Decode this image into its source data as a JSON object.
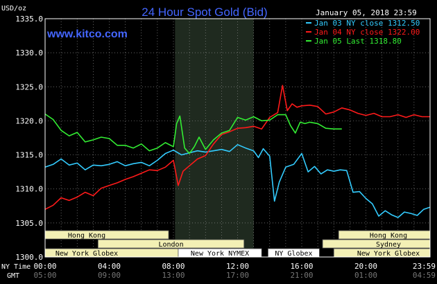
{
  "chart_data": {
    "type": "line",
    "title": "24 Hour Spot Gold (Bid)",
    "watermark": "www.kitco.com",
    "date_stamp": "January 05, 2018 23:59",
    "ylabel": "USD/oz",
    "ylim": [
      1300,
      1335
    ],
    "yticks": [
      "1335.0",
      "1330.0",
      "1325.0",
      "1320.0",
      "1315.0",
      "1310.0",
      "1305.0",
      "1300.0"
    ],
    "xlim": [
      0,
      24
    ],
    "xticks_ny": [
      "00:00",
      "04:00",
      "08:00",
      "12:00",
      "16:00",
      "20:00",
      "23:59"
    ],
    "xticks_gmt": [
      "05:00",
      "09:00",
      "13:00",
      "17:00",
      "21:00",
      "01:00",
      "04:59"
    ],
    "row_labels": [
      "NY Time",
      "GMT"
    ],
    "grid": true,
    "legend_position": "top-right",
    "shaded_session": [
      8.1,
      13.0
    ],
    "series": [
      {
        "name": "Jan 03 NY close 1312.50",
        "color": "#33ccff",
        "x": [
          0,
          0.5,
          1,
          1.5,
          2,
          2.5,
          3,
          3.5,
          4,
          4.5,
          5,
          5.5,
          6,
          6.5,
          7,
          7.5,
          8,
          8.5,
          9,
          9.5,
          10,
          10.5,
          11,
          11.5,
          12,
          12.5,
          13,
          13.3,
          13.6,
          14,
          14.3,
          14.6,
          15,
          15.5,
          16,
          16.4,
          16.8,
          17.2,
          17.6,
          18,
          18.4,
          18.8,
          19.2,
          19.6,
          20,
          20.4,
          20.8,
          21.2,
          21.6,
          22,
          22.4,
          22.8,
          23.2,
          23.6,
          23.98
        ],
        "values": [
          1313.2,
          1313.6,
          1314.4,
          1313.5,
          1313.8,
          1312.8,
          1313.5,
          1313.4,
          1313.6,
          1314.0,
          1313.4,
          1313.7,
          1313.9,
          1313.4,
          1314.2,
          1315.2,
          1315.7,
          1315.0,
          1315.3,
          1315.6,
          1315.4,
          1315.6,
          1315.8,
          1315.5,
          1316.5,
          1316.0,
          1315.6,
          1314.6,
          1315.9,
          1314.8,
          1308.2,
          1311.0,
          1313.2,
          1313.6,
          1315.2,
          1312.5,
          1313.3,
          1312.2,
          1312.8,
          1312.6,
          1312.8,
          1312.7,
          1309.5,
          1309.6,
          1308.6,
          1307.8,
          1306.0,
          1306.8,
          1306.2,
          1305.8,
          1306.6,
          1306.4,
          1306.1,
          1307.0,
          1307.3
        ]
      },
      {
        "name": "Jan 04 NY close 1322.00",
        "color": "#ff1a1a",
        "x": [
          0,
          0.5,
          1,
          1.5,
          2,
          2.5,
          3,
          3.5,
          4,
          4.5,
          5,
          5.5,
          6,
          6.5,
          7,
          7.5,
          8,
          8.3,
          8.6,
          9,
          9.5,
          10,
          10.5,
          11,
          11.5,
          12,
          12.5,
          13,
          13.5,
          14,
          14.5,
          14.8,
          15.1,
          15.4,
          15.7,
          16,
          16.5,
          17,
          17.5,
          18,
          18.5,
          19,
          19.5,
          20,
          20.5,
          21,
          21.5,
          22,
          22.5,
          23,
          23.5,
          23.98
        ],
        "values": [
          1307.0,
          1307.6,
          1308.7,
          1308.3,
          1308.8,
          1309.5,
          1309.0,
          1310.1,
          1310.5,
          1310.9,
          1311.4,
          1311.8,
          1312.3,
          1312.8,
          1312.7,
          1313.2,
          1314.2,
          1310.5,
          1312.6,
          1313.4,
          1314.4,
          1314.9,
          1316.6,
          1318.0,
          1318.4,
          1318.9,
          1319.0,
          1319.2,
          1318.8,
          1320.5,
          1321.2,
          1325.2,
          1321.5,
          1322.5,
          1322.0,
          1322.2,
          1322.3,
          1322.1,
          1321.0,
          1321.3,
          1321.9,
          1321.6,
          1321.1,
          1320.8,
          1321.1,
          1320.6,
          1320.6,
          1320.9,
          1320.5,
          1320.9,
          1320.6,
          1320.6
        ]
      },
      {
        "name": "Jan 05 Last 1318.80",
        "color": "#33ee33",
        "x": [
          0,
          0.5,
          1,
          1.5,
          2,
          2.5,
          3,
          3.5,
          4,
          4.5,
          5,
          5.5,
          6,
          6.5,
          7,
          7.5,
          8,
          8.2,
          8.4,
          8.7,
          9,
          9.3,
          9.6,
          10,
          10.5,
          11,
          11.5,
          12,
          12.5,
          13,
          13.5,
          14,
          14.5,
          15,
          15.3,
          15.6,
          15.9,
          16.2,
          16.5,
          17,
          17.5,
          18,
          18.5
        ],
        "values": [
          1321.0,
          1320.2,
          1318.6,
          1317.8,
          1318.3,
          1316.9,
          1317.2,
          1317.6,
          1317.4,
          1316.4,
          1316.4,
          1316.0,
          1316.6,
          1315.6,
          1316.0,
          1316.8,
          1316.2,
          1319.6,
          1320.7,
          1316.0,
          1315.2,
          1316.2,
          1317.6,
          1315.8,
          1317.2,
          1318.2,
          1318.6,
          1320.5,
          1320.1,
          1320.6,
          1320.0,
          1320.1,
          1320.9,
          1320.9,
          1319.3,
          1318.2,
          1319.8,
          1319.6,
          1319.8,
          1319.6,
          1318.9,
          1318.8,
          1318.8
        ]
      }
    ],
    "sessions": [
      {
        "label": "Hong Kong",
        "start": 0,
        "end": 7.7,
        "row": 1,
        "fill": "#f3f0b5",
        "open_left": true
      },
      {
        "label": "London",
        "start": 3.3,
        "end": 12.4,
        "row": 2,
        "fill": "#f3f0b5"
      },
      {
        "label": "New York Globex",
        "start": 0,
        "end": 8.3,
        "row": 3,
        "fill": "#f3f0b5",
        "open_left": true
      },
      {
        "label": "New York NYMEX",
        "start": 8.3,
        "end": 13.5,
        "row": 3,
        "fill": "#ffffff"
      },
      {
        "label": "NY Globex",
        "start": 13.9,
        "end": 17.1,
        "row": 3,
        "fill": "#ffffff"
      },
      {
        "label": "Hong Kong",
        "start": 18.3,
        "end": 24,
        "row": 1,
        "fill": "#f3f0b5",
        "open_right": true
      },
      {
        "label": "Sydney",
        "start": 17.3,
        "end": 24,
        "row": 2,
        "fill": "#f3f0b5",
        "open_right": true
      },
      {
        "label": "New York Globex",
        "start": 18.0,
        "end": 24,
        "row": 3,
        "fill": "#f3f0b5",
        "open_right": true
      }
    ]
  }
}
